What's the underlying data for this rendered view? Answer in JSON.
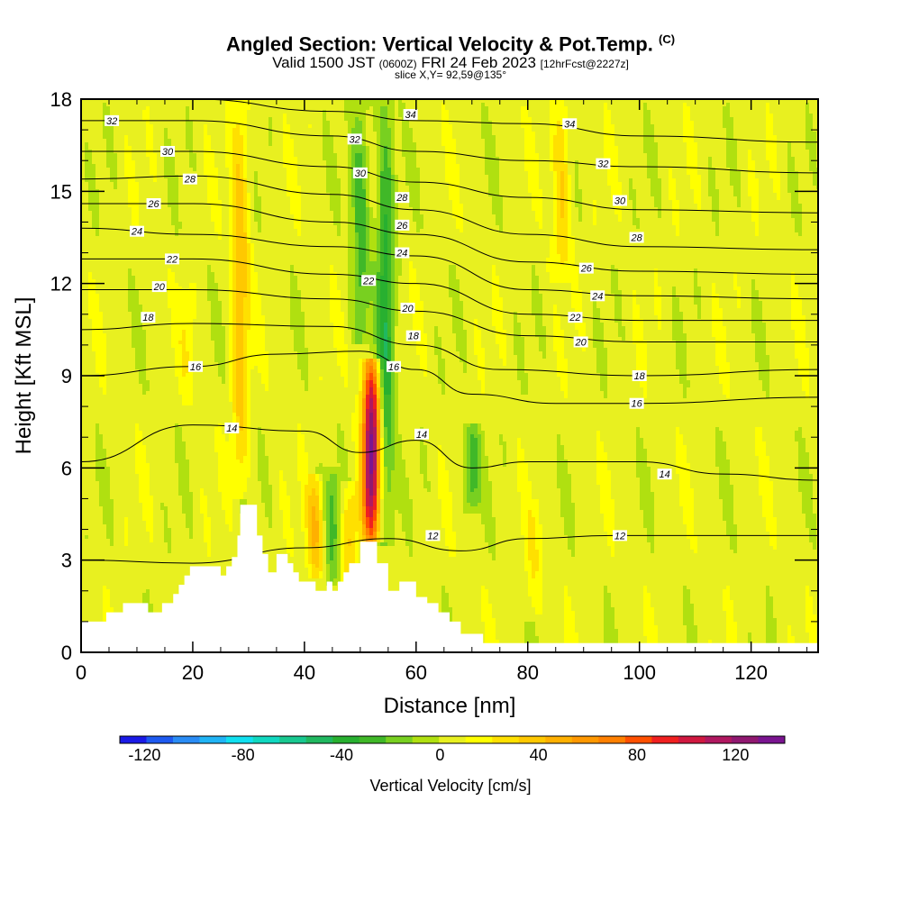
{
  "header": {
    "title": "Angled Section: Vertical Velocity & Pot.Temp.",
    "copyright": "(C)",
    "valid_prefix": "Valid 1500 JST",
    "valid_utc": "(0600Z)",
    "valid_date": "FRI 24 Feb 2023",
    "forecast": "[12hrFcst@2227z]",
    "slice": "slice X,Y= 92,59@135°"
  },
  "chart_data": {
    "type": "heatmap",
    "xlabel": "Distance [nm]",
    "ylabel": "Height [Kft MSL]",
    "xlim": [
      0,
      132
    ],
    "ylim": [
      0,
      18
    ],
    "x_ticks": [
      0,
      20,
      40,
      60,
      80,
      100,
      120
    ],
    "y_ticks": [
      0,
      3,
      6,
      9,
      12,
      15,
      18
    ],
    "colorbar": {
      "label": "Vertical Velocity [cm/s]",
      "ticks": [
        -120,
        -80,
        -40,
        0,
        40,
        80,
        120
      ],
      "range": [
        -130,
        140
      ],
      "colors": [
        "#1a1ae6",
        "#1e5af0",
        "#2a8cf5",
        "#20b4f5",
        "#10e0f0",
        "#10d8c0",
        "#18c890",
        "#20b860",
        "#28b030",
        "#40b828",
        "#78d020",
        "#b0e010",
        "#e8f020",
        "#ffff00",
        "#ffe000",
        "#ffc800",
        "#ffb000",
        "#ff9800",
        "#ff8000",
        "#ff5000",
        "#f02020",
        "#d01840",
        "#b01860",
        "#901870",
        "#7a1490"
      ]
    },
    "velocity_features": [
      {
        "x": 52,
        "z_bottom": 3.6,
        "z_top": 9.6,
        "peak": 130
      },
      {
        "x": 42,
        "z_bottom": 2.4,
        "z_top": 5.8,
        "peak": 40
      },
      {
        "x": 48,
        "z_bottom": 2.2,
        "z_top": 5.6,
        "peak": 30
      },
      {
        "x": 45,
        "z_bottom": 2.2,
        "z_top": 6.0,
        "peak": -30
      },
      {
        "x": 54.5,
        "z_bottom": 3.5,
        "z_top": 18,
        "peak": -45
      },
      {
        "x": 50,
        "z_bottom": 10,
        "z_top": 18,
        "peak": -35
      },
      {
        "x": 28.5,
        "z_bottom": 5,
        "z_top": 18,
        "peak": 35
      },
      {
        "x": 19,
        "z_bottom": 8,
        "z_top": 12,
        "peak": 12
      },
      {
        "x": 70,
        "z_bottom": 4.5,
        "z_top": 7.5,
        "peak": -35
      },
      {
        "x": 86,
        "z_bottom": 12,
        "z_top": 18,
        "peak": 30
      },
      {
        "x": 81,
        "z_bottom": 1,
        "z_top": 5,
        "peak": 15
      }
    ],
    "contours": [
      {
        "value": 12,
        "label": "12",
        "points": [
          [
            0,
            3.0
          ],
          [
            20,
            2.9
          ],
          [
            40,
            3.4
          ],
          [
            55,
            3.7
          ],
          [
            68,
            3.3
          ],
          [
            80,
            3.7
          ],
          [
            95,
            3.8
          ],
          [
            132,
            3.8
          ]
        ]
      },
      {
        "value": 14,
        "label": "14",
        "points": [
          [
            0,
            6.2
          ],
          [
            20,
            7.4
          ],
          [
            40,
            7.2
          ],
          [
            50,
            6.5
          ],
          [
            60,
            6.9
          ],
          [
            70,
            6.0
          ],
          [
            80,
            6.2
          ],
          [
            100,
            6.2
          ],
          [
            115,
            5.8
          ],
          [
            132,
            5.6
          ]
        ]
      },
      {
        "value": 16,
        "label": "16",
        "points": [
          [
            0,
            9.0
          ],
          [
            20,
            9.3
          ],
          [
            35,
            9.7
          ],
          [
            50,
            9.8
          ],
          [
            60,
            9.2
          ],
          [
            70,
            8.4
          ],
          [
            85,
            8.1
          ],
          [
            100,
            8.1
          ],
          [
            132,
            8.3
          ]
        ]
      },
      {
        "value": 18,
        "label": "18",
        "points": [
          [
            0,
            10.5
          ],
          [
            20,
            10.7
          ],
          [
            45,
            10.6
          ],
          [
            60,
            10.0
          ],
          [
            75,
            9.2
          ],
          [
            100,
            9.0
          ],
          [
            132,
            9.2
          ]
        ]
      },
      {
        "value": 20,
        "label": "20",
        "points": [
          [
            0,
            11.8
          ],
          [
            20,
            11.8
          ],
          [
            45,
            11.5
          ],
          [
            60,
            11.1
          ],
          [
            80,
            10.3
          ],
          [
            100,
            10.1
          ],
          [
            132,
            10.1
          ]
        ]
      },
      {
        "value": 22,
        "label": "22",
        "points": [
          [
            0,
            12.8
          ],
          [
            20,
            12.8
          ],
          [
            45,
            12.3
          ],
          [
            60,
            12.0
          ],
          [
            80,
            11.0
          ],
          [
            100,
            10.8
          ],
          [
            132,
            10.8
          ]
        ]
      },
      {
        "value": 24,
        "label": "24",
        "points": [
          [
            0,
            13.8
          ],
          [
            20,
            13.6
          ],
          [
            45,
            13.2
          ],
          [
            60,
            12.9
          ],
          [
            80,
            11.8
          ],
          [
            100,
            11.6
          ],
          [
            132,
            11.5
          ]
        ]
      },
      {
        "value": 26,
        "label": "26",
        "points": [
          [
            0,
            14.6
          ],
          [
            20,
            14.6
          ],
          [
            45,
            14.0
          ],
          [
            60,
            13.6
          ],
          [
            80,
            12.7
          ],
          [
            100,
            12.4
          ],
          [
            132,
            12.3
          ]
        ]
      },
      {
        "value": 28,
        "label": "28",
        "points": [
          [
            0,
            15.4
          ],
          [
            20,
            15.5
          ],
          [
            45,
            14.9
          ],
          [
            60,
            14.4
          ],
          [
            80,
            13.6
          ],
          [
            100,
            13.2
          ],
          [
            132,
            13.1
          ]
        ]
      },
      {
        "value": 30,
        "label": "30",
        "points": [
          [
            0,
            16.3
          ],
          [
            20,
            16.3
          ],
          [
            45,
            15.8
          ],
          [
            60,
            15.3
          ],
          [
            80,
            14.8
          ],
          [
            100,
            14.4
          ],
          [
            132,
            14.3
          ]
        ]
      },
      {
        "value": 32,
        "label": "32",
        "points": [
          [
            0,
            17.3
          ],
          [
            20,
            17.3
          ],
          [
            45,
            16.8
          ],
          [
            60,
            16.3
          ],
          [
            80,
            16.0
          ],
          [
            100,
            15.8
          ],
          [
            132,
            15.6
          ]
        ]
      },
      {
        "value": 34,
        "label": "34",
        "points": [
          [
            20,
            18.0
          ],
          [
            45,
            17.6
          ],
          [
            60,
            17.3
          ],
          [
            80,
            17.2
          ],
          [
            100,
            16.8
          ],
          [
            132,
            16.6
          ]
        ]
      }
    ],
    "contour_labels": [
      {
        "text": "32",
        "x": 5.5,
        "y": 17.3
      },
      {
        "text": "30",
        "x": 15.5,
        "y": 16.3
      },
      {
        "text": "28",
        "x": 19.5,
        "y": 15.4
      },
      {
        "text": "26",
        "x": 13.0,
        "y": 14.6
      },
      {
        "text": "24",
        "x": 10.0,
        "y": 13.7
      },
      {
        "text": "22",
        "x": 16.3,
        "y": 12.8
      },
      {
        "text": "20",
        "x": 14.0,
        "y": 11.9
      },
      {
        "text": "18",
        "x": 12.0,
        "y": 10.9
      },
      {
        "text": "16",
        "x": 20.5,
        "y": 9.3
      },
      {
        "text": "14",
        "x": 27.0,
        "y": 7.3
      },
      {
        "text": "32",
        "x": 49.0,
        "y": 16.7
      },
      {
        "text": "30",
        "x": 50.0,
        "y": 15.6
      },
      {
        "text": "34",
        "x": 59.0,
        "y": 17.5
      },
      {
        "text": "28",
        "x": 57.5,
        "y": 14.8
      },
      {
        "text": "26",
        "x": 57.5,
        "y": 13.9
      },
      {
        "text": "24",
        "x": 57.5,
        "y": 13.0
      },
      {
        "text": "22",
        "x": 51.5,
        "y": 12.1
      },
      {
        "text": "20",
        "x": 58.5,
        "y": 11.2
      },
      {
        "text": "18",
        "x": 59.5,
        "y": 10.3
      },
      {
        "text": "16",
        "x": 56.0,
        "y": 9.3
      },
      {
        "text": "14",
        "x": 61.0,
        "y": 7.1
      },
      {
        "text": "12",
        "x": 63.0,
        "y": 3.8
      },
      {
        "text": "34",
        "x": 87.5,
        "y": 17.2
      },
      {
        "text": "32",
        "x": 93.5,
        "y": 15.9
      },
      {
        "text": "30",
        "x": 96.5,
        "y": 14.7
      },
      {
        "text": "28",
        "x": 99.5,
        "y": 13.5
      },
      {
        "text": "26",
        "x": 90.5,
        "y": 12.5
      },
      {
        "text": "24",
        "x": 92.5,
        "y": 11.6
      },
      {
        "text": "22",
        "x": 88.5,
        "y": 10.9
      },
      {
        "text": "20",
        "x": 89.5,
        "y": 10.1
      },
      {
        "text": "18",
        "x": 100.0,
        "y": 9.0
      },
      {
        "text": "16",
        "x": 99.5,
        "y": 8.1
      },
      {
        "text": "14",
        "x": 104.5,
        "y": 5.8
      },
      {
        "text": "12",
        "x": 96.5,
        "y": 3.8
      }
    ],
    "terrain_profile": [
      [
        0,
        1
      ],
      [
        4.5,
        1
      ],
      [
        4.5,
        1.3
      ],
      [
        7.5,
        1.3
      ],
      [
        7.5,
        1.6
      ],
      [
        12,
        1.6
      ],
      [
        12,
        1.3
      ],
      [
        14.5,
        1.3
      ],
      [
        14.5,
        1.6
      ],
      [
        16.5,
        1.6
      ],
      [
        16.5,
        1.9
      ],
      [
        17.5,
        1.9
      ],
      [
        17.5,
        2.2
      ],
      [
        18.5,
        2.2
      ],
      [
        18.5,
        2.5
      ],
      [
        19.5,
        2.5
      ],
      [
        19.5,
        2.8
      ],
      [
        25,
        2.8
      ],
      [
        25,
        2.5
      ],
      [
        26,
        2.5
      ],
      [
        26,
        2.8
      ],
      [
        27,
        2.8
      ],
      [
        27,
        3.1
      ],
      [
        28,
        3.1
      ],
      [
        28,
        3.8
      ],
      [
        28.5,
        3.8
      ],
      [
        28.5,
        4.8
      ],
      [
        31.5,
        4.8
      ],
      [
        31.5,
        3.8
      ],
      [
        32.5,
        3.8
      ],
      [
        32.5,
        3.2
      ],
      [
        33.5,
        3.2
      ],
      [
        33.5,
        2.6
      ],
      [
        35,
        2.6
      ],
      [
        35,
        3.2
      ],
      [
        37,
        3.2
      ],
      [
        37,
        2.9
      ],
      [
        38,
        2.9
      ],
      [
        38,
        2.6
      ],
      [
        39,
        2.6
      ],
      [
        39,
        2.3
      ],
      [
        42,
        2.3
      ],
      [
        42,
        2.0
      ],
      [
        44,
        2.0
      ],
      [
        44,
        2.3
      ],
      [
        45,
        2.3
      ],
      [
        45,
        2.0
      ],
      [
        46,
        2.0
      ],
      [
        46,
        2.3
      ],
      [
        47,
        2.3
      ],
      [
        47,
        2.6
      ],
      [
        48,
        2.6
      ],
      [
        48,
        2.9
      ],
      [
        50,
        2.9
      ],
      [
        50,
        3.6
      ],
      [
        53,
        3.6
      ],
      [
        53,
        2.9
      ],
      [
        55,
        2.9
      ],
      [
        55,
        2.0
      ],
      [
        57,
        2.0
      ],
      [
        57,
        2.3
      ],
      [
        60,
        2.3
      ],
      [
        60,
        1.8
      ],
      [
        62,
        1.8
      ],
      [
        62,
        1.6
      ],
      [
        64,
        1.6
      ],
      [
        64,
        1.3
      ],
      [
        66,
        1.3
      ],
      [
        66,
        1.0
      ],
      [
        68,
        1.0
      ],
      [
        68,
        0.6
      ],
      [
        72,
        0.6
      ],
      [
        72,
        0.3
      ],
      [
        132,
        0.3
      ]
    ]
  }
}
